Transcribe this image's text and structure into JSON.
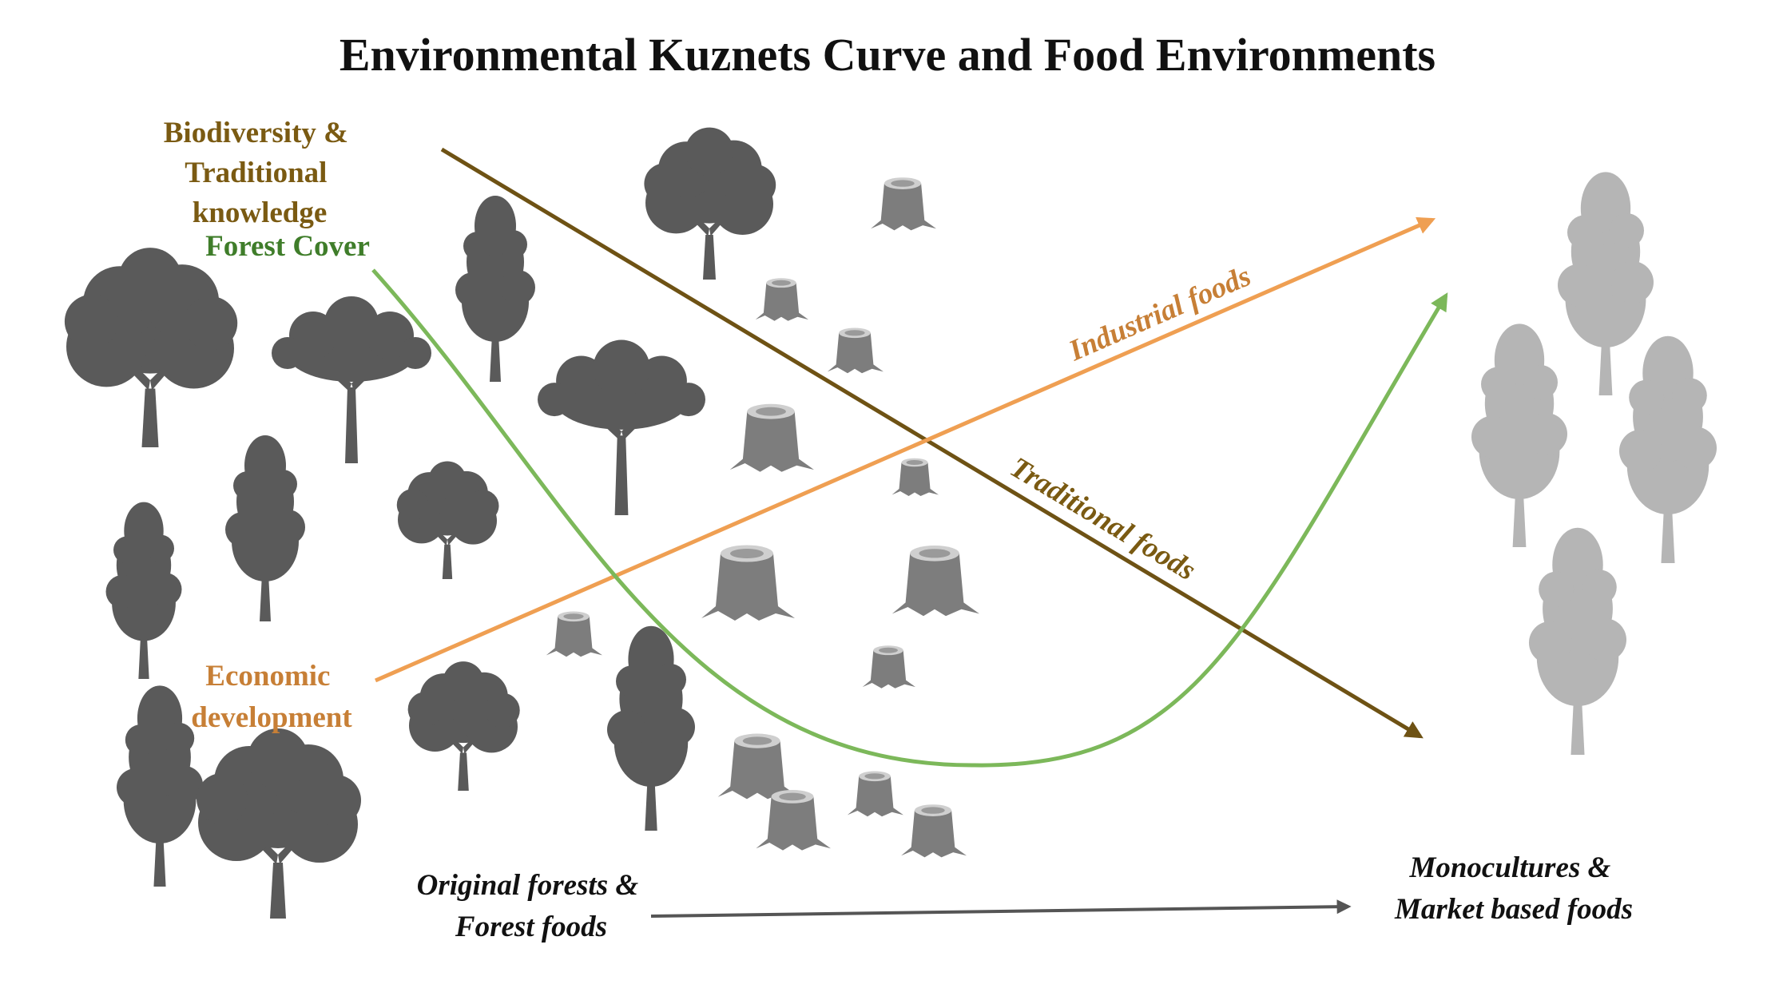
{
  "title": "Environmental Kuznets Curve and Food Environments",
  "labels": {
    "biodiversity": [
      "Biodiversity &",
      "Traditional",
      "knowledge"
    ],
    "forest_cover": "Forest Cover",
    "economic_development": [
      "Economic",
      "development"
    ],
    "industrial_foods": "Industrial foods",
    "traditional_foods": "Traditional foods",
    "origin": [
      "Original forests &",
      "Forest foods"
    ],
    "destination": [
      "Monocultures &",
      "Market based foods"
    ]
  },
  "colors": {
    "biodiversity": "#7a5a12",
    "forest_cover": "#3f7d2a",
    "forest_line": "#7cb85a",
    "economic": "#c77f36",
    "economic_line": "#ef9f52",
    "axis": "#555555",
    "tree_dark": "#5a5a5a",
    "stump": "#7d7d7d",
    "tree_light": "#b5b5b5"
  },
  "icons": {
    "full_trees": "tree-icon",
    "cut_trees": "tree-stump-icon",
    "plantation_trees": "tree-icon"
  }
}
